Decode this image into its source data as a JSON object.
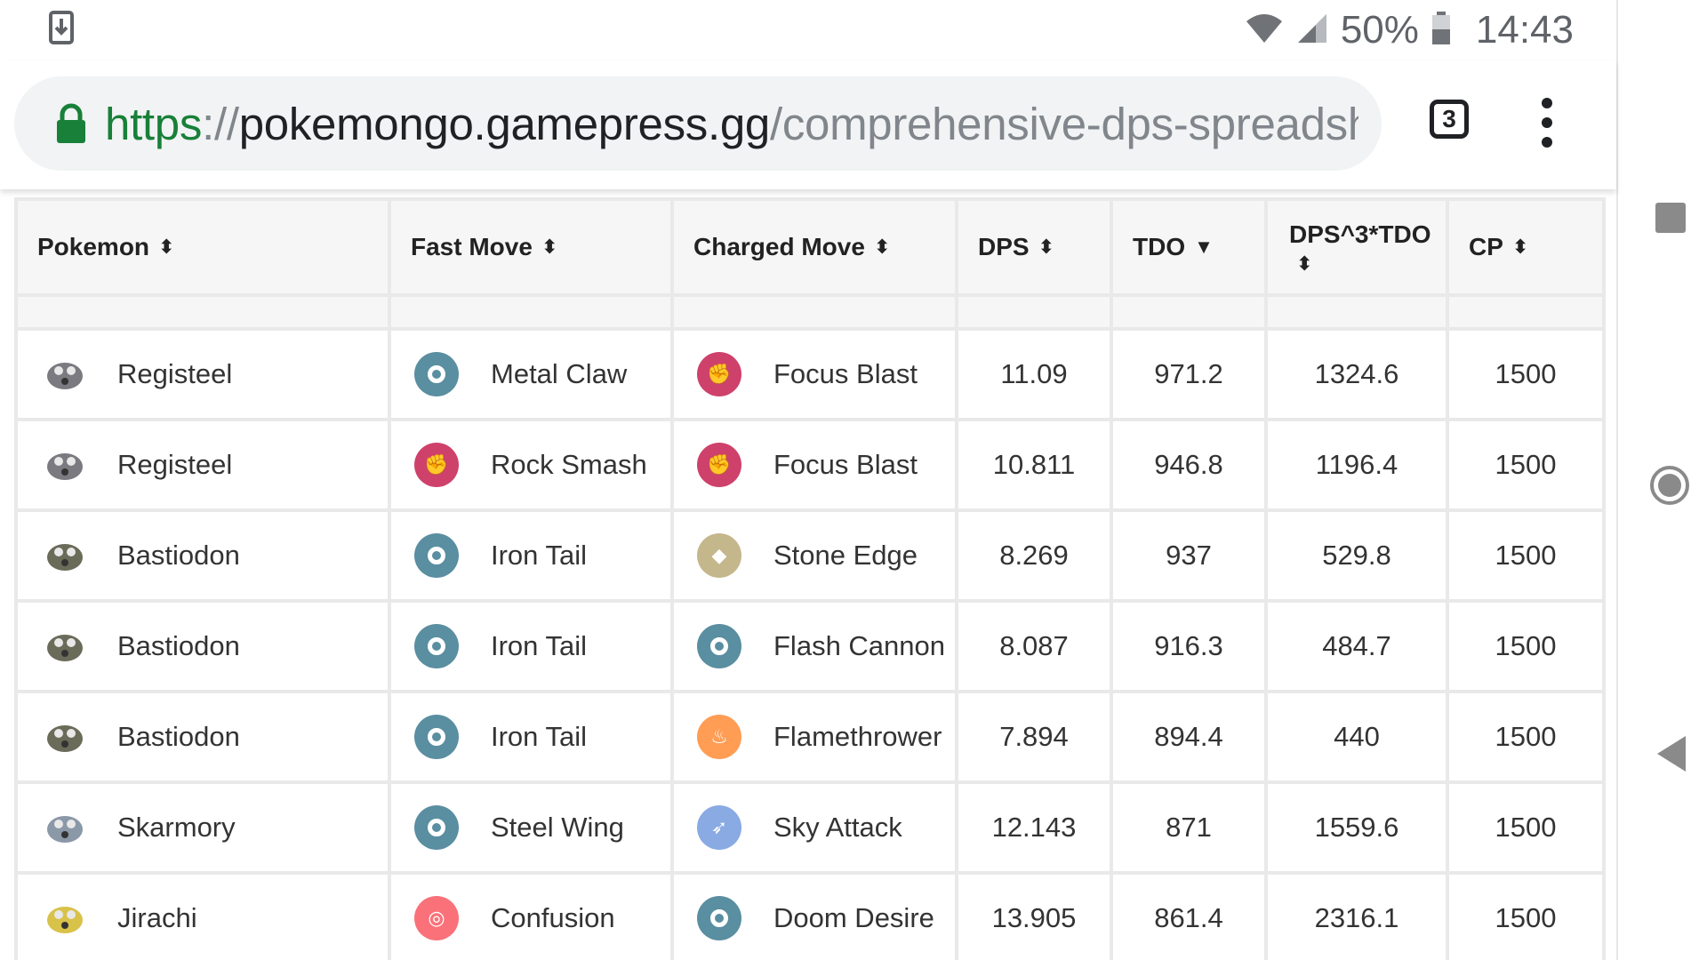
{
  "status_bar": {
    "battery_percent": "50%",
    "time": "14:43",
    "icons": [
      "download-icon",
      "wifi-icon",
      "cell-signal-icon",
      "battery-icon"
    ]
  },
  "browser": {
    "url_scheme": "https",
    "url_sep": "://",
    "url_host": "pokemongo.gamepress.gg",
    "url_path": "/comprehensive-dps-spreadshe",
    "tab_count": "3",
    "icons": [
      "lock-icon",
      "tabs-icon",
      "more-vert-icon"
    ]
  },
  "nav": {
    "icons": [
      "recents-icon",
      "home-icon",
      "back-icon"
    ]
  },
  "table": {
    "headers": [
      {
        "label": "Pokemon",
        "sort": "⬍"
      },
      {
        "label": "Fast Move",
        "sort": "⬍"
      },
      {
        "label": "Charged Move",
        "sort": "⬍"
      },
      {
        "label": "DPS",
        "sort": "⬍"
      },
      {
        "label": "TDO",
        "sort": "▼"
      },
      {
        "label": "DPS^3*TDO",
        "sort": "⬍"
      },
      {
        "label": "CP",
        "sort": "⬍"
      }
    ],
    "rows": [
      {
        "pokemon": "Registeel",
        "fast": "Metal Claw",
        "fast_type": "steel",
        "charged": "Focus Blast",
        "charged_type": "fighting",
        "dps": "11.09",
        "tdo": "971.2",
        "dps3tdo": "1324.6",
        "cp": "1500"
      },
      {
        "pokemon": "Registeel",
        "fast": "Rock Smash",
        "fast_type": "fighting",
        "charged": "Focus Blast",
        "charged_type": "fighting",
        "dps": "10.811",
        "tdo": "946.8",
        "dps3tdo": "1196.4",
        "cp": "1500"
      },
      {
        "pokemon": "Bastiodon",
        "fast": "Iron Tail",
        "fast_type": "steel",
        "charged": "Stone Edge",
        "charged_type": "rock",
        "dps": "8.269",
        "tdo": "937",
        "dps3tdo": "529.8",
        "cp": "1500"
      },
      {
        "pokemon": "Bastiodon",
        "fast": "Iron Tail",
        "fast_type": "steel",
        "charged": "Flash Cannon",
        "charged_type": "steel",
        "dps": "8.087",
        "tdo": "916.3",
        "dps3tdo": "484.7",
        "cp": "1500"
      },
      {
        "pokemon": "Bastiodon",
        "fast": "Iron Tail",
        "fast_type": "steel",
        "charged": "Flamethrower",
        "charged_type": "fire",
        "dps": "7.894",
        "tdo": "894.4",
        "dps3tdo": "440",
        "cp": "1500"
      },
      {
        "pokemon": "Skarmory",
        "fast": "Steel Wing",
        "fast_type": "steel",
        "charged": "Sky Attack",
        "charged_type": "flying",
        "dps": "12.143",
        "tdo": "871",
        "dps3tdo": "1559.6",
        "cp": "1500"
      },
      {
        "pokemon": "Jirachi",
        "fast": "Confusion",
        "fast_type": "psychic",
        "charged": "Doom Desire",
        "charged_type": "steel",
        "dps": "13.905",
        "tdo": "861.4",
        "dps3tdo": "2316.1",
        "cp": "1500"
      }
    ],
    "type_colors": {
      "steel": "#5a8ea1",
      "fighting": "#ce416b",
      "rock": "#c5b78c",
      "fire": "#ff9d55",
      "flying": "#89aae3",
      "psychic": "#fa7179"
    }
  }
}
